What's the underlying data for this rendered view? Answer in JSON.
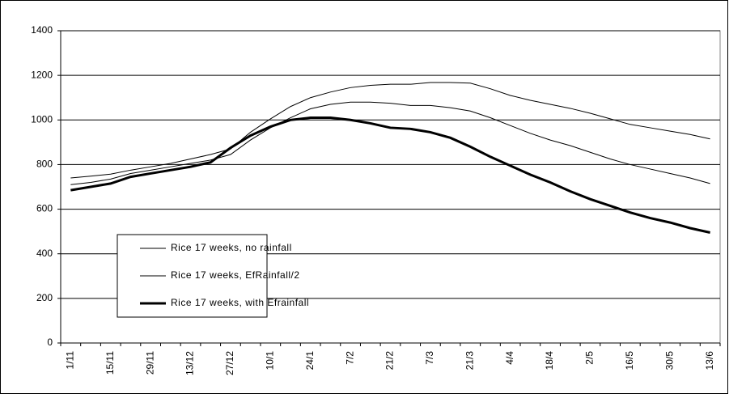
{
  "chart_data": {
    "type": "line",
    "categories": [
      "1/11",
      null,
      "15/11",
      null,
      "29/11",
      null,
      "13/12",
      null,
      "27/12",
      null,
      "10/1",
      null,
      "24/1",
      null,
      "7/2",
      null,
      "21/2",
      null,
      "7/3",
      null,
      "21/3",
      null,
      "4/4",
      null,
      "18/4",
      null,
      "2/5",
      null,
      "16/5",
      null,
      "30/5",
      null,
      "13/6"
    ],
    "series": [
      {
        "name": "Rice 17 weeks, no rainfall",
        "color": "#000000",
        "width": 1,
        "values": [
          740,
          748,
          757,
          775,
          790,
          805,
          825,
          845,
          870,
          945,
          1005,
          1060,
          1100,
          1125,
          1145,
          1155,
          1160,
          1160,
          1168,
          1168,
          1165,
          1140,
          1110,
          1088,
          1070,
          1052,
          1030,
          1005,
          980,
          965,
          950,
          935,
          915
        ]
      },
      {
        "name": "Rice 17 weeks,  EfRainfall/2",
        "color": "#000000",
        "width": 1,
        "values": [
          710,
          720,
          735,
          760,
          775,
          790,
          805,
          820,
          845,
          910,
          965,
          1010,
          1050,
          1070,
          1080,
          1080,
          1075,
          1065,
          1065,
          1055,
          1040,
          1010,
          975,
          940,
          910,
          885,
          855,
          825,
          800,
          780,
          760,
          740,
          715
        ]
      },
      {
        "name": "Rice 17 weeks, with Efrainfall",
        "color": "#000000",
        "width": 3,
        "values": [
          685,
          700,
          715,
          745,
          760,
          775,
          790,
          810,
          875,
          930,
          970,
          1000,
          1010,
          1010,
          1000,
          985,
          965,
          960,
          945,
          920,
          880,
          835,
          795,
          755,
          720,
          680,
          645,
          615,
          585,
          560,
          540,
          515,
          495
        ]
      }
    ],
    "ylim": [
      0,
      1400
    ],
    "yticks": [
      0,
      200,
      400,
      600,
      800,
      1000,
      1200,
      1400
    ],
    "grid": true
  }
}
